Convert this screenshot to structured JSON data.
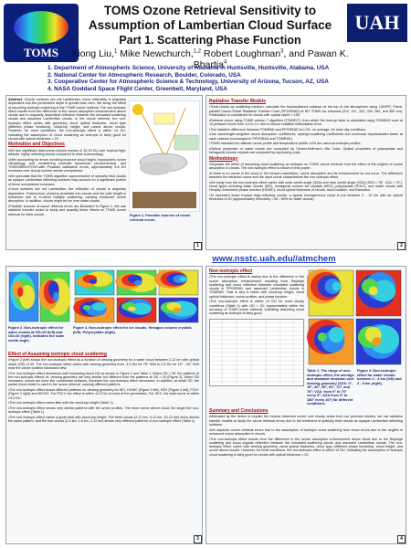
{
  "header": {
    "title_line1": "TOMS Ozone Retrieval Sensitivity to",
    "title_line2": "Assumption of Lambertian Cloud Surface",
    "subtitle": "Part 1. Scattering Phase Function",
    "authors": [
      {
        "text": "Xiong Liu,",
        "sup": "1"
      },
      {
        "text": " Mike Newchurch,",
        "sup": "1,2"
      },
      {
        "text": " Robert Loughman",
        "sup": "3"
      },
      {
        "text": ", and Pawan K. Bhartia",
        "sup": "4"
      }
    ],
    "affiliations": [
      "1. Department of Atmospheric Science, University of Alabama in Huntsville, Huntsville, Alabama, USA",
      "2. National Center for Atmospheric Research, Boulder, Colorado, USA",
      "3. Cooperative Center for Atmospheric Science & Technology, University of Arizona, Tucson, AZ, USA",
      "4. NASA Goddard Space Flight Center, Greenbelt, Maryland, USA"
    ],
    "logo_left": "TOMS",
    "logo_right": "UAH"
  },
  "url": "www.nsstc.uah.edu//atmchem",
  "abstract": {
    "label": "Abstract.",
    "text": "Clouds surfaces are not Lambertian; cloud reflectivity is angularly dependent and the penetration depth is greater than zero. We study the effect of assuming isotropic scattering in the TOMS ozone retrieval. The non-isotropic effect results from the difference in the ozone absorption enhancement above clouds due to angularly dependent reflection between the simulated scattering clouds and assumed Lambertian clouds. In the ozone retrieval, the non-isotropic effect varies with geometry, cloud optical thickness, cloud type (different phase functions), cloud-top height, and ozone above clouds. However, for most conditions, the non-isotropic effect is within ±4 DU, indicating the assumption of cloud scattering as isotropic is fairly good for clouds with optical thickness > 20."
  },
  "motivation": {
    "heading": "Motivation and Objectives",
    "bullets": [
      "We see significant total-ozone-column excess of 10-15 DU over tropical high-altitude, highly reflecting clouds compared to clear surroundings.",
      "After accounting for errors involving incorrect cloud height, tropospheric ozone climatology, and considering potential dynamical, photochemical, and TOMS/SBUV/TOVS-with Pinatubo calibration errors, approximately 4-8 DU excesses over cloudy scenes remain unexplained.",
      "We speculate that the TOMS algorithm approximation of optically thick clouds as opaque Lambertian reflecting surfaces may account for a significant portion of these unexplained excesses.",
      "Cloud surfaces are not Lambertian; the reflection of clouds is angularly dependent. Furthermore, photons penetrate into clouds and the path length is enhanced due to in-cloud multiple scattering, causing enhanced ozone absorption. In addition, clouds might be ice over water clouds.",
      "Possible sources of ozone retrieval errors are illustrated in Figure 1. We use radiative transfer codes to study and quantify these effects on TOMS ozone retrieval for thick clouds."
    ]
  },
  "figure1_caption": "Figure 1. Possible sources of ozone retrieval errors.",
  "rtm": {
    "heading": "Radiative Transfer Models",
    "bullets": [
      "Treat clouds as scattering medium, calculate the backscattered radiance at the top of the atmosphere using LIDORT, Plane-parallel Gauss-Seidel Radiative Transfer Code (PPGSRAD) at NIT TOMS six channels (312, 317, 331, 339, 360, and 380 nm). Polarization is considered for clouds with optical depth > 150.",
      "Retrieve ozone using TOMS version-7 algorithm (TOMSV7), from which the look-up table is calculated using TOMRAD code at 10 pressure levels from 1.0 to 0.1 atm to reduce radiative interpolation error.",
      "The radiative difference between TOMRAD and PPGSRAD is 0.2%, on average, for clear sky conditions.",
      "Use wavelength-weighted ozone absorption coefficients, rayleigh-scattering coefficients and molecular depolarization factor at each channel (unchanged in PPGSRAD and TOMRAD).",
      "TOMS standard ten-latitude ozone profile and temperature profile LUTs are used as example profiles.",
      "Optical properties of water clouds are computed by Scheel-Hoffman's Mie Code. Optical properties of polycrystals and hexagonal-column crystals are computed by ray-tracing code."
    ]
  },
  "methodology": {
    "heading": "Methodology",
    "bullets": [
      "Separate the effect of assuming cloud scattering as isotropic on TOMS ozone retrieval from the effect of the neglect of ozone absorption in clouds. The non-isotropic effect is shown in this poster.",
      "If there is no ozone in the cloud in the forward calculation, ozone absorption and its enhancement do not occur. The difference between the retrieved ozone and the input ozone characterizes the non-isotropic effect.",
      "We study how the non-isotropic effect varies with solar zenith angle (SZA) and view zenith angle (VZA) (SZA < 78°, VZA < 70°), cloud types including water clouds (WC), hexagonal column ice crystals (HEX), polycrystals (POLY), and water clouds with Henyey-Greenstein phase function (HGWC), cloud optical thickness of clouds, cloud location, and thickness.",
      "To represent those tropical high-reflecting clouds, a typical homogeneous cloud is put between 2 - 12 km with an optical thickness of 40 (approximately reflectivity = 60 - 80% for water clouds)."
    ]
  },
  "figure2_caption": "Figure 2. Non-isotropic effect for water clouds at OD=40 (left) and OD=10 (right). Indicates the solar zenith angle.",
  "figure3_caption": "Figure 3. Non-isotropic effect for ice clouds. Hexagon column crystals (left). Polycrystals (right).",
  "effect": {
    "heading": "Effect of Assuming isotropic cloud scattering",
    "bullets": [
      "Figure 2 (left) shows the non-isotropic effect as a function of viewing geometry for a water cloud between 2-12 km with optical depth (OD) of 40. The non-isotropic effect varies with viewing geometry from -4.5 DU for 78° SZA to 2.5 DU for 10° - 20° SZA near the ozone positive backward view.",
      "The non-isotropic effect decreases with increasing cloud OD as shown in Figure 2 and Table 1. When OD > 30, the patterns of the non-isotropic effects vs. viewing geometry are very similar, but different from the patterns at OD = 10 (Figure 2). When OD increases, clouds act more like Lambertian surfaces, therefore the non-isotropic effect decreases. In addition, at small OD, the partial cloud model is used in the ozone retrieval, causing different patterns.",
      "The non-isotropic effect shows different patterns vs. viewing geometry for WC, HGWC (Figure 3 left), HEX (Figure 3 left), POLY (Figure 3 right) and WCHG. For POLY, the effect is within ±2.5 DU at most of the geometries. For HEX, the total ozone is within ±3.0 DU.",
      "The non-isotropic effect varies little with the cloud-top height (Table 1).",
      "The non-isotropic effect shows very similar patterns with the ozone profiles. The more ozone above cloud, the larger the non-isotropic effect (Table 1).",
      "The non-isotropic effect varies a great deal with cloud-top height. The three clouds (2-12 km, 5-12 km, 10-12 km) show almost the same pattern, and the four clouds (2-4 km, 2-6 km, 2-12 km) shows very different patterns of non-isotropic effect (Table 1)."
    ]
  },
  "nonisotropic": {
    "heading": "Non-isotropic effect",
    "bullets": [
      "The non-isotropic effect is mainly due to the difference in the ozone absorption enhancement resulting from Rayleigh scattering and cloud reflection between simulated scattering clouds in PPGSRAD and assumed Lambertian clouds in TOMRAD. That is why it varies with cloud-top height, cloud optical thickness, ozone profiles, and phase function.",
      "The non-isotropic effect is within ±4 DU for most cloudy conditions (Table 1) with OD > 20, approximately within the accuracy of TOMS ozone retrieval, indicating assuming cloud scattering as isotropic is fairly good."
    ]
  },
  "figure4_caption": "Figure 4. Non-isotropic effect for water clouds between 2 - 4 km (left) and 2 - 8 km (right).",
  "table1_caption": "Table 1. The range of non-isotropic effect, the average and standard deviation over viewing geometry (SZA: 0°, 15°, 30°, 45°, 60°, 70°, and 78°; VZA: from 0° to 70° every 5°; AZA from 0° to 180° every 30°) for different conditions.",
  "summary": {
    "heading": "Summary and Conclusions",
    "bullets": [
      "Motivated by the desire to explain the excess observed ozone over cloudy areas from our previous studies, we use radiative transfer models to study the ozone retrieval errors due to the treatment of optically thick clouds as opaque Lambertian reflecting surfaces.",
      "We separate ozone retrieval errors due to the assumption of isotropic cloud scattering from those errors due to the neglect of enhanced ozone absorption in clouds.",
      "The non-isotropic effect results from the difference in the ozone absorption enhancement above cloud due to the Rayleigh scattering and cloud angular reflection between the simulated scattering clouds and assumed Lambertian clouds. The non-isotropic effect varies with viewing geometry, cloud optical thickness, cloud type (different phase functions), cloud height, and ozone above clouds. However, for most conditions, the non-isotropic effect is within ±4 DU, indicating the assumption of isotropic cloud scattering is fairly good for clouds with optical thickness > 20."
    ]
  },
  "page_numbers": [
    "1",
    "2",
    "3",
    "4"
  ]
}
